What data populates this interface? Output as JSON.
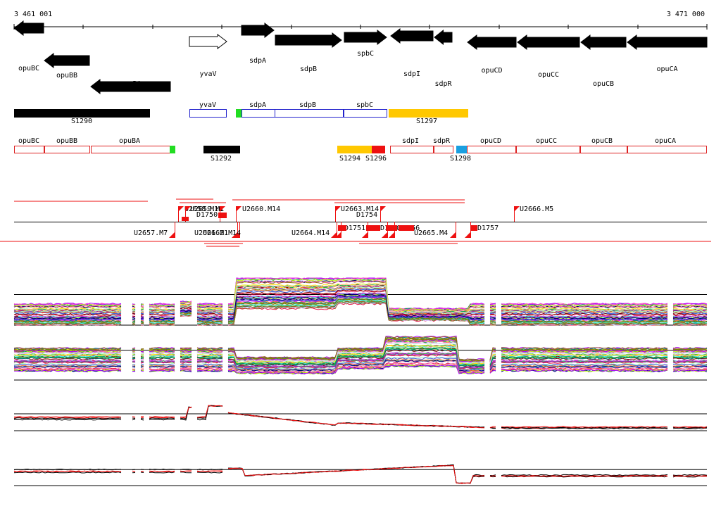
{
  "coords": {
    "start": "3 461 001",
    "end": "3 471 000"
  },
  "colors": {
    "gene_fill": "#000000",
    "outline_blue": "#2222cc",
    "outline_red": "#dd2222",
    "green": "#22dd22",
    "yellow": "#ffc800",
    "red": "#ee1111",
    "blue": "#1a9fe0",
    "black": "#000000"
  },
  "genes": [
    {
      "label": "opuBC",
      "dir": "left",
      "filled": true
    },
    {
      "label": "opuBB",
      "dir": "left",
      "filled": true
    },
    {
      "label": "opuBA",
      "dir": "left",
      "filled": true
    },
    {
      "label": "yvaV",
      "dir": "right",
      "filled": false
    },
    {
      "label": "sdpA",
      "dir": "right",
      "filled": true
    },
    {
      "label": "sdpB",
      "dir": "right",
      "filled": true
    },
    {
      "label": "spbC",
      "dir": "right",
      "filled": true
    },
    {
      "label": "sdpI",
      "dir": "left",
      "filled": true
    },
    {
      "label": "sdpR",
      "dir": "left",
      "filled": true
    },
    {
      "label": "opuCD",
      "dir": "left",
      "filled": true
    },
    {
      "label": "opuCC",
      "dir": "left",
      "filled": true
    },
    {
      "label": "opuCB",
      "dir": "left",
      "filled": true
    },
    {
      "label": "opuCA",
      "dir": "left",
      "filled": true
    }
  ],
  "track_plus": [
    {
      "label": "S1290",
      "kind": "black"
    },
    {
      "label": "yvaV",
      "kind": "blue"
    },
    {
      "label": "",
      "kind": "green"
    },
    {
      "label": "sdpA",
      "kind": "blue"
    },
    {
      "label": "sdpB",
      "kind": "blue"
    },
    {
      "label": "spbC",
      "kind": "blue"
    },
    {
      "label": "S1297",
      "kind": "yellow"
    }
  ],
  "track_minus": [
    {
      "label": "opuBC",
      "kind": "red"
    },
    {
      "label": "opuBB",
      "kind": "red"
    },
    {
      "label": "opuBA",
      "kind": "red"
    },
    {
      "label": "",
      "kind": "green"
    },
    {
      "label": "S1292",
      "kind": "black"
    },
    {
      "label": "S1294",
      "kind": "yellow"
    },
    {
      "label": "S1296",
      "kind": "redfill"
    },
    {
      "label": "sdpI",
      "kind": "red"
    },
    {
      "label": "sdpR",
      "kind": "red"
    },
    {
      "label": "S1298",
      "kind": "blue"
    },
    {
      "label": "opuCD",
      "kind": "red"
    },
    {
      "label": "opuCC",
      "kind": "red"
    },
    {
      "label": "opuCB",
      "kind": "red"
    },
    {
      "label": "opuCA",
      "kind": "red"
    }
  ],
  "tss_labels": [
    "U2658.M16",
    "U2659.M1",
    "D1750",
    "U2660.M14",
    "U2663.M14",
    "D1754",
    "U2666.M5",
    "U2657.M7",
    "U2661.M1",
    "U2662.M14",
    "U2664.M14",
    "D1751",
    "D1752",
    "D1755",
    "D1756",
    "U2665.M4",
    "D1757"
  ]
}
